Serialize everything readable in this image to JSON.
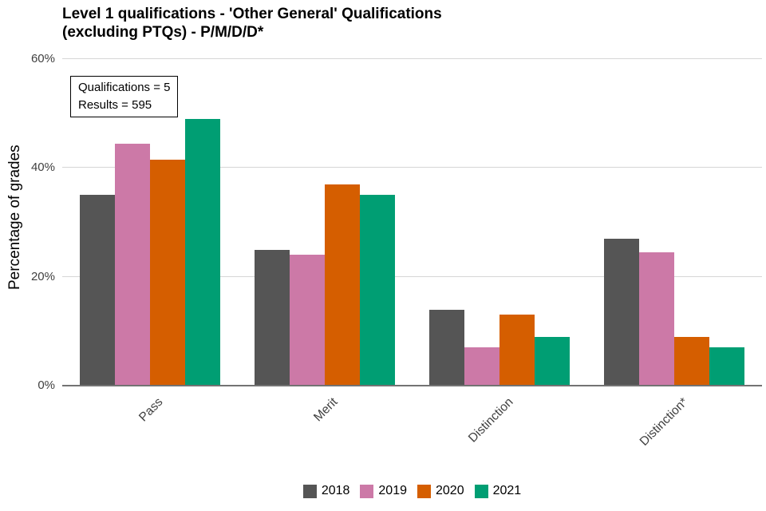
{
  "chart_data": {
    "type": "bar",
    "title": "Level 1 qualifications  - 'Other General' Qualifications (excluding PTQs) - P/M/D/D*",
    "title_lines": [
      "Level 1 qualifications  - 'Other General' Qualifications",
      "(excluding PTQs) - P/M/D/D*"
    ],
    "ylabel": "Percentage of grades",
    "xlabel": "",
    "categories": [
      "Pass",
      "Merit",
      "Distinction",
      "Distinction*"
    ],
    "series": [
      {
        "name": "2018",
        "color": "#555555",
        "values": [
          35,
          25,
          14,
          27
        ]
      },
      {
        "name": "2019",
        "color": "#CC79A7",
        "values": [
          44.5,
          24,
          7,
          24.5
        ]
      },
      {
        "name": "2020",
        "color": "#D55E00",
        "values": [
          41.5,
          37,
          13,
          9
        ]
      },
      {
        "name": "2021",
        "color": "#009E73",
        "values": [
          49,
          35,
          9,
          7
        ]
      }
    ],
    "ylim": [
      0,
      60
    ],
    "yticks": [
      0,
      20,
      40,
      60
    ],
    "ytick_labels": [
      "0%",
      "20%",
      "40%",
      "60%"
    ],
    "grid": "horizontal",
    "legend_position": "bottom",
    "annotation": {
      "lines": [
        "Qualifications = 5",
        "Results = 595"
      ]
    }
  }
}
